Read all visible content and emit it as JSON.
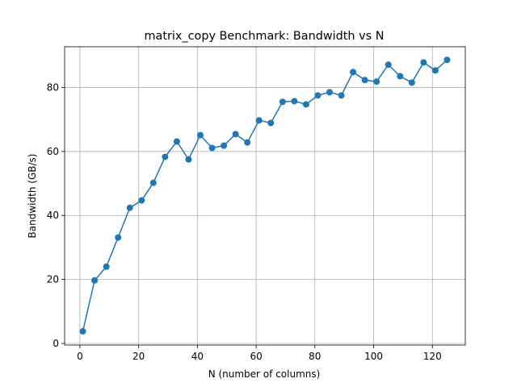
{
  "chart_data": {
    "type": "line",
    "title": "matrix_copy Benchmark: Bandwidth vs N",
    "xlabel": "N (number of columns)",
    "ylabel": "Bandwidth (GB/s)",
    "x": [
      1,
      5,
      9,
      13,
      17,
      21,
      25,
      29,
      33,
      37,
      41,
      45,
      49,
      53,
      57,
      61,
      65,
      69,
      73,
      77,
      81,
      85,
      89,
      93,
      97,
      101,
      105,
      109,
      113,
      117,
      121,
      125
    ],
    "series": [
      {
        "color": "#1f77b4",
        "values": [
          3.8,
          19.7,
          24.0,
          33.1,
          42.4,
          44.7,
          50.2,
          58.3,
          63.1,
          57.5,
          65.1,
          61.1,
          61.8,
          65.4,
          62.8,
          69.7,
          68.9,
          75.5,
          75.7,
          74.7,
          77.5,
          78.5,
          77.5,
          84.8,
          82.3,
          81.8,
          87.1,
          83.5,
          81.5,
          87.8,
          85.3,
          88.6
        ]
      }
    ],
    "xlim": [
      -5.2,
      131.2
    ],
    "xticks": [
      0,
      20,
      40,
      60,
      80,
      100,
      120
    ],
    "ylim": [
      -0.5,
      92.7
    ],
    "yticks": [
      0,
      20,
      40,
      60,
      80
    ],
    "grid": true
  }
}
